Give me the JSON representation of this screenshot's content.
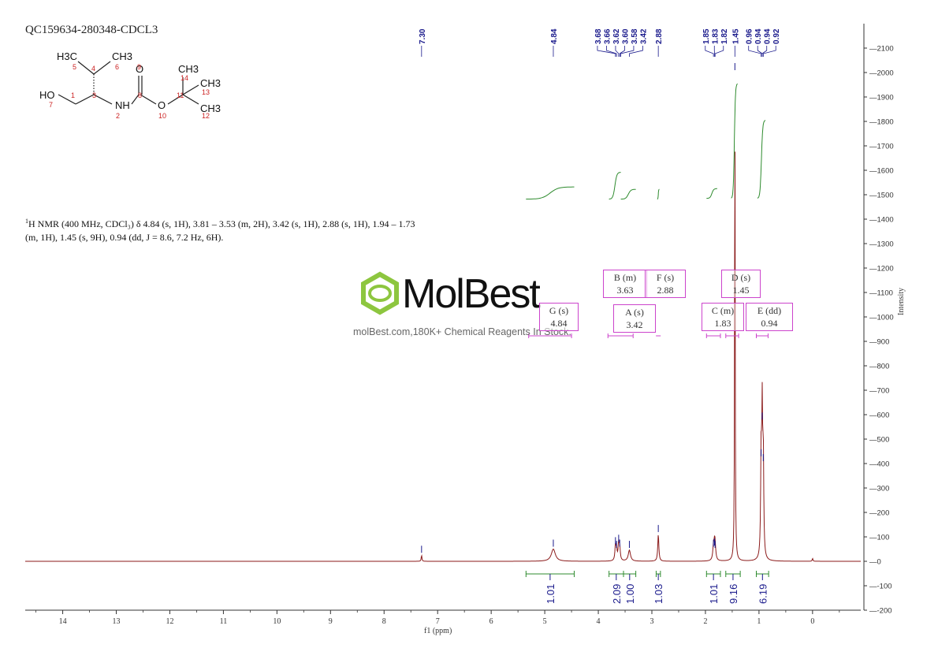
{
  "sample_id": "QC159634-280348-CDCL3",
  "nmr_description": {
    "nucleus_sup": "1",
    "line1": "H NMR (400 MHz, CDCl₃) δ 4.84 (s, 1H), 3.81 – 3.53 (m, 2H), 3.42 (s, 1H), 2.88 (s, 1H), 1.94 – 1.73",
    "line2": "(m, 1H), 1.45 (s, 9H), 0.94 (dd, J = 8.6, 7.2 Hz, 6H)."
  },
  "watermark": {
    "brand": "MolBest",
    "tagline": "molBest.com,180K+ Chemical Reagents In Stock."
  },
  "colors": {
    "spectrum": "#8b1a1a",
    "peak_labels": "#1a1a8c",
    "integrals": "#2e8b2e",
    "multiplets": "#cc44cc",
    "logo": "#8dc63f"
  },
  "structure": {
    "atom_labels": [
      "H3C",
      "CH3",
      "CH3",
      "CH3",
      "CH3",
      "HO",
      "NH",
      "O",
      "O"
    ],
    "numbers": [
      "1",
      "2",
      "3",
      "4",
      "5",
      "6",
      "7",
      "8",
      "9",
      "10",
      "11",
      "12",
      "13",
      "14"
    ]
  },
  "chart_data": {
    "type": "line",
    "xlabel": "f1 (ppm)",
    "ylabel": "Intensity",
    "xlim": [
      14.7,
      -0.9
    ],
    "ylim": [
      -200,
      2200
    ],
    "x_ticks": [
      14,
      13,
      12,
      11,
      10,
      9,
      8,
      7,
      6,
      5,
      4,
      3,
      2,
      1,
      0
    ],
    "y_ticks": [
      2100,
      2000,
      1900,
      1800,
      1700,
      1600,
      1500,
      1400,
      1300,
      1200,
      1100,
      1000,
      900,
      800,
      700,
      600,
      500,
      400,
      300,
      200,
      100,
      0,
      -100,
      -200
    ],
    "peaks": [
      {
        "ppm": 7.3,
        "height": 25,
        "width": 0.008
      },
      {
        "ppm": 4.84,
        "height": 50,
        "width": 0.045
      },
      {
        "ppm": 3.68,
        "height": 60,
        "width": 0.012
      },
      {
        "ppm": 3.66,
        "height": 45,
        "width": 0.012
      },
      {
        "ppm": 3.62,
        "height": 70,
        "width": 0.012
      },
      {
        "ppm": 3.6,
        "height": 50,
        "width": 0.012
      },
      {
        "ppm": 3.42,
        "height": 45,
        "width": 0.025
      },
      {
        "ppm": 2.88,
        "height": 110,
        "width": 0.012
      },
      {
        "ppm": 1.85,
        "height": 50,
        "width": 0.015
      },
      {
        "ppm": 1.83,
        "height": 55,
        "width": 0.015
      },
      {
        "ppm": 1.82,
        "height": 45,
        "width": 0.015
      },
      {
        "ppm": 1.45,
        "height": 2000,
        "width": 0.006
      },
      {
        "ppm": 0.96,
        "height": 420,
        "width": 0.01
      },
      {
        "ppm": 0.94,
        "height": 570,
        "width": 0.01
      },
      {
        "ppm": 0.92,
        "height": 400,
        "width": 0.01
      },
      {
        "ppm": 0.0,
        "height": 12,
        "width": 0.008
      }
    ],
    "peak_labels": [
      "7.30",
      "4.84",
      "3.68",
      "3.66",
      "3.62",
      "3.60",
      "3.58",
      "3.42",
      "2.88",
      "1.85",
      "1.83",
      "1.82",
      "1.45",
      "0.96",
      "0.94",
      "0.94",
      "0.92"
    ],
    "integrals": [
      {
        "label": "1.01",
        "from": 5.35,
        "to": 4.45
      },
      {
        "label": "2.09",
        "from": 3.8,
        "to": 3.53
      },
      {
        "label": "1.00",
        "from": 3.53,
        "to": 3.3
      },
      {
        "label": "1.03",
        "from": 2.92,
        "to": 2.84
      },
      {
        "label": "1.01",
        "from": 1.98,
        "to": 1.72
      },
      {
        "label": "9.16",
        "from": 1.62,
        "to": 1.35
      },
      {
        "label": "6.19",
        "from": 1.05,
        "to": 0.82
      }
    ],
    "multiplets": [
      {
        "id": "G",
        "type": "(s)",
        "shift": "4.84"
      },
      {
        "id": "B",
        "type": "(m)",
        "shift": "3.63"
      },
      {
        "id": "A",
        "type": "(s)",
        "shift": "3.42"
      },
      {
        "id": "F",
        "type": "(s)",
        "shift": "2.88"
      },
      {
        "id": "C",
        "type": "(m)",
        "shift": "1.83"
      },
      {
        "id": "D",
        "type": "(s)",
        "shift": "1.45"
      },
      {
        "id": "E",
        "type": "(dd)",
        "shift": "0.94"
      }
    ]
  }
}
